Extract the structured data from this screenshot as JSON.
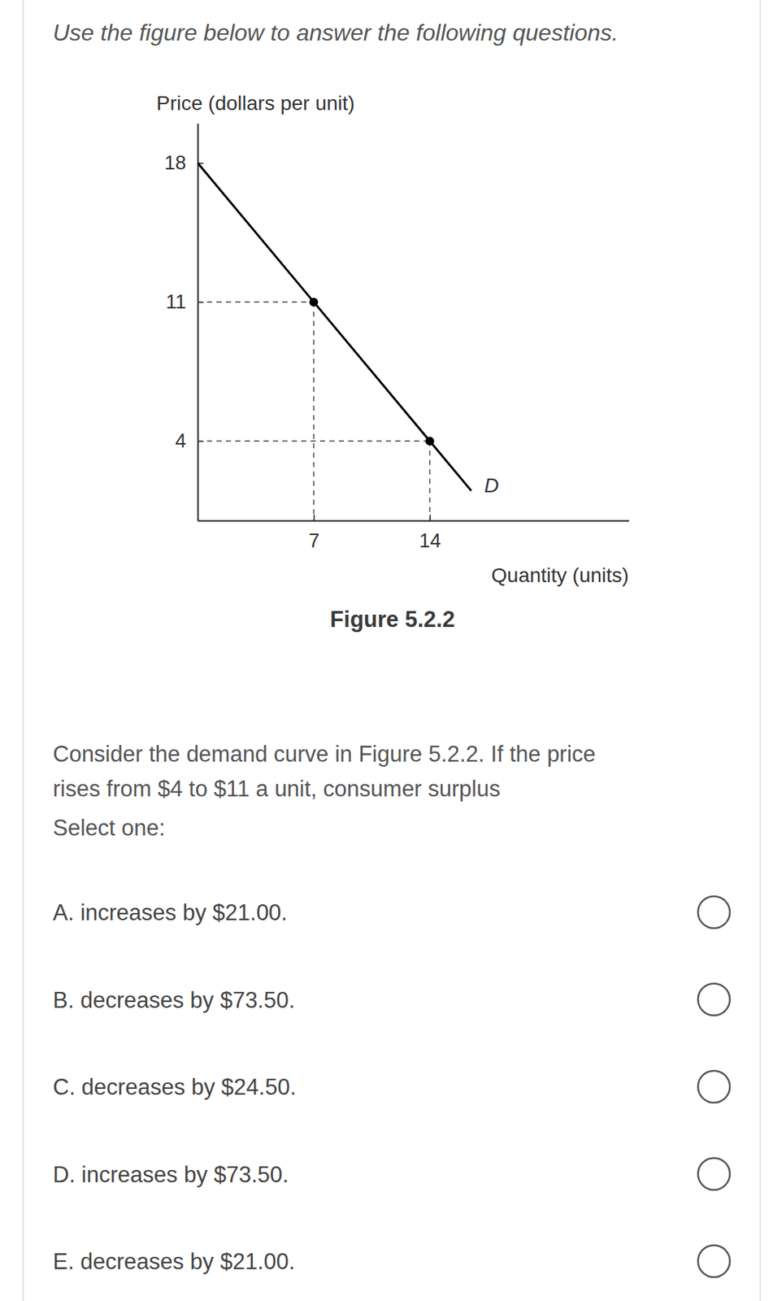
{
  "instruction": "Use the figure below to answer the following questions.",
  "chart_data": {
    "type": "line",
    "caption": "Figure 5.2.2",
    "x_label": "Quantity (units)",
    "y_label": "Price (dollars per unit)",
    "x": [
      0,
      7,
      14,
      16.5
    ],
    "series": [
      {
        "name": "D",
        "type": "line",
        "color": "#000000",
        "values": [
          18,
          11,
          4,
          1.5
        ]
      },
      {
        "type": "scatter",
        "marker": "circle",
        "color": "#000000",
        "values": [
          null,
          11,
          4,
          null
        ]
      }
    ],
    "xlim": [
      0,
      26
    ],
    "ylim": [
      0,
      20
    ],
    "xticks": [
      7,
      14
    ],
    "yticks": [
      4,
      11,
      18
    ]
  },
  "question": {
    "lines": [
      "Consider the demand curve in Figure 5.2.2. If the price",
      "rises from $4 to $11 a unit, consumer surplus"
    ],
    "prompt": "Select one:",
    "options": [
      "A. increases by $21.00.",
      "B. decreases by $73.50.",
      "C. decreases by $24.50.",
      "D. increases by $73.50.",
      "E. decreases by $21.00."
    ]
  }
}
